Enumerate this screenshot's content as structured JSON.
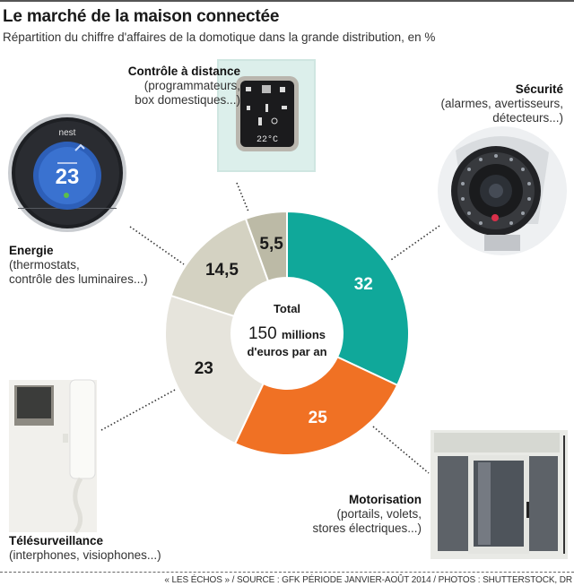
{
  "header": {
    "title": "Le marché de la maison connectée",
    "subtitle": "Répartition du chiffre d'affaires de la domotique dans la grande distribution, en %"
  },
  "center": {
    "total_label": "Total",
    "amount": "150",
    "unit": "millions",
    "unit_line2": "d'euros par an"
  },
  "categories": [
    {
      "title": "Sécurité",
      "desc": [
        "(alarmes, avertisseurs,",
        "détecteurs...)"
      ],
      "icon": "security-camera-icon"
    },
    {
      "title": "Motorisation",
      "desc": [
        "(portails, volets,",
        "stores électriques...)"
      ],
      "icon": "motorized-shutter-icon"
    },
    {
      "title": "Télésurveillance",
      "desc": [
        "(interphones, visiophones...)"
      ],
      "icon": "intercom-icon"
    },
    {
      "title": "Energie",
      "desc": [
        "(thermostats,",
        "contrôle des luminaires...)"
      ],
      "icon": "thermostat-icon"
    },
    {
      "title": "Contrôle à distance",
      "desc": [
        "(programmateurs,",
        "box domestiques...)"
      ],
      "icon": "control-panel-icon"
    }
  ],
  "photos": {
    "nest_brand": "nest",
    "nest_temp": "23",
    "panel_temp": "22°C"
  },
  "chart_data": {
    "type": "pie",
    "donut": true,
    "title": "Le marché de la maison connectée",
    "subtitle": "Répartition du chiffre d'affaires de la domotique dans la grande distribution, en %",
    "categories": [
      "Sécurité",
      "Motorisation",
      "Télésurveillance",
      "Energie",
      "Contrôle à distance"
    ],
    "values": [
      32,
      25,
      23,
      14.5,
      5.5
    ],
    "value_labels": [
      "32",
      "25",
      "23",
      "14,5",
      "5,5"
    ],
    "colors": [
      "#10a89a",
      "#f07124",
      "#e6e4dc",
      "#d4d2c2",
      "#bcbaa6"
    ],
    "label_colors": [
      "#ffffff",
      "#ffffff",
      "#1a1a1a",
      "#1a1a1a",
      "#1a1a1a"
    ],
    "start": "top",
    "direction": "clockwise"
  },
  "footer": {
    "source": "« LES ÉCHOS » / SOURCE : GFK PÉRIODE JANVIER-AOÛT 2014 / PHOTOS : SHUTTERSTOCK, DR"
  }
}
